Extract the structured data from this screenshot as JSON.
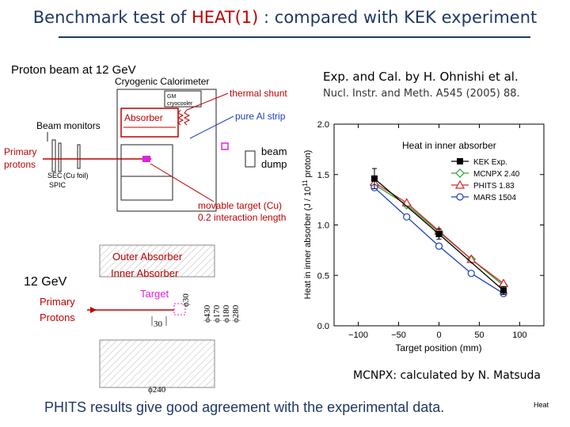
{
  "title": {
    "prefix": "Benchmark test of ",
    "highlight": "HEAT(1)",
    "suffix": " :  compared with KEK experiment"
  },
  "top_diagram": {
    "proton_beam": "Proton beam at 12 GeV",
    "cryogenic": "Cryogenic Calorimeter",
    "gm_line1": "GM",
    "gm_line2": "cryocooler",
    "thermal_shunt": "thermal shunt",
    "absorber": "Absorber",
    "pure_al": "pure Al strip",
    "beam_monitors": "Beam monitors",
    "primary": "Primary",
    "protons": "protons",
    "sec": "SEC",
    "cu_foil": "(Cu foil)",
    "spic": "SPIC",
    "beam_dump_1": "beam",
    "beam_dump_2": "dump",
    "movable_target": "movable target (Cu)",
    "interaction": "0.2 interaction length"
  },
  "bottom_diagram": {
    "ge": "12 GeV",
    "outer_absorber": "Outer Absorber",
    "inner_absorber": "Inner Absorber",
    "target": "Target",
    "primary": "Primary",
    "protons": "Protons",
    "d30": "ϕ30",
    "d430": "ϕ430",
    "d170": "ϕ170",
    "d180": "ϕ180",
    "d280": "ϕ280",
    "len30": "30",
    "d240": "ϕ240"
  },
  "experiment": {
    "exp": "Exp. and Cal. by H. Ohnishi et al.",
    "ref": "Nucl. Instr. and Meth. A545 (2005) 88."
  },
  "chart_data": {
    "type": "line",
    "title": "Heat in inner absorber",
    "xlabel": "Target position (mm)",
    "ylabel": "Heat in inner absorber (J / 10",
    "ylabel_exp": "11",
    "ylabel_tail": " proton)",
    "xlim": [
      -130,
      130
    ],
    "ylim": [
      0,
      2.0
    ],
    "x_ticks": [
      -100,
      -50,
      0,
      50,
      100
    ],
    "x_tick_labels": [
      "−100",
      "−50",
      "0",
      "50",
      "100"
    ],
    "y_ticks": [
      0,
      0.5,
      1.0,
      1.5,
      2.0
    ],
    "y_tick_labels": [
      "0.0",
      "0.5",
      "1.0",
      "1.5",
      "2.0"
    ],
    "legend_position": "top-right",
    "series": [
      {
        "name": "KEK Exp.",
        "color": "#000000",
        "marker": "square-filled",
        "x": [
          -80,
          0,
          80
        ],
        "y": [
          1.46,
          0.91,
          0.35
        ],
        "yerr": [
          0.1,
          0.05,
          0.04
        ]
      },
      {
        "name": "MCNPX 2.40",
        "color": "#2ca02c",
        "marker": "diamond",
        "x": [
          -80,
          -40,
          0,
          40,
          80
        ],
        "y": [
          1.4,
          1.2,
          0.93,
          0.66,
          0.4
        ]
      },
      {
        "name": "PHITS 1.83",
        "color": "#d62728",
        "marker": "triangle",
        "x": [
          -80,
          -40,
          0,
          40,
          80
        ],
        "y": [
          1.42,
          1.22,
          0.94,
          0.66,
          0.42
        ]
      },
      {
        "name": "MARS 1504",
        "color": "#1f3fbf",
        "marker": "circle",
        "x": [
          -80,
          -40,
          0,
          40,
          80
        ],
        "y": [
          1.37,
          1.08,
          0.79,
          0.52,
          0.32
        ]
      }
    ]
  },
  "notes": {
    "mcnpx": "MCNPX: calculated by N. Matsuda",
    "conclusion": "PHITS results give good agreement with the experimental data.",
    "footer": "Heat"
  }
}
